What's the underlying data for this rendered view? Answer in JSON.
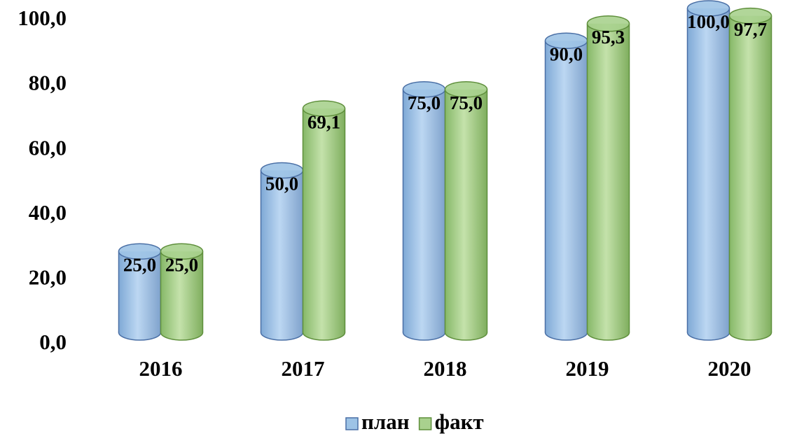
{
  "chart_data": {
    "type": "bar",
    "categories": [
      "2016",
      "2017",
      "2018",
      "2019",
      "2020"
    ],
    "series": [
      {
        "name": "план",
        "color": "#9dc3e6",
        "values": [
          25,
          50,
          75,
          90,
          100
        ],
        "value_labels": [
          "25,0",
          "50,0",
          "75,0",
          "90,0",
          "100,0"
        ]
      },
      {
        "name": "факт",
        "color": "#a9d18e",
        "values": [
          25,
          69.1,
          75,
          95.3,
          97.7
        ],
        "value_labels": [
          "25,0",
          "69,1",
          "75,0",
          "95,3",
          "97,7"
        ]
      }
    ],
    "ylim": [
      0,
      100
    ],
    "yticks": [
      {
        "value": 0,
        "label": "0,0"
      },
      {
        "value": 20,
        "label": "20,0"
      },
      {
        "value": 40,
        "label": "40,0"
      },
      {
        "value": 60,
        "label": "60,0"
      },
      {
        "value": 80,
        "label": "80,0"
      },
      {
        "value": 100,
        "label": "100,0"
      }
    ],
    "grid": false,
    "legend": "bottom"
  }
}
